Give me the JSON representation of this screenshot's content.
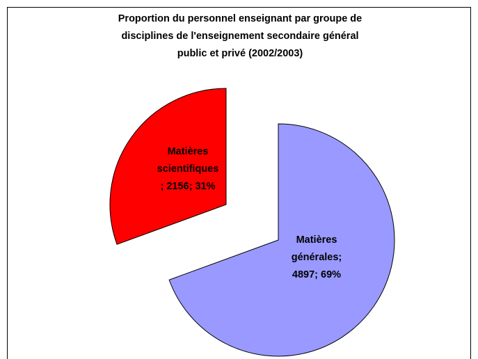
{
  "chart_data": {
    "type": "pie",
    "title": [
      "Proportion du personnel enseignant par groupe de",
      "disciplines de l'enseignement secondaire général",
      "public et privé (2002/2003)"
    ],
    "values": [
      4897,
      2156
    ],
    "colors": [
      "#9999ff",
      "#ff0000"
    ],
    "data_labels": [
      [
        "Matières",
        "générales;",
        "4897; 69%"
      ],
      [
        "Matières",
        "scientifiques",
        "; 2156; 31%"
      ]
    ],
    "exploded": true
  }
}
